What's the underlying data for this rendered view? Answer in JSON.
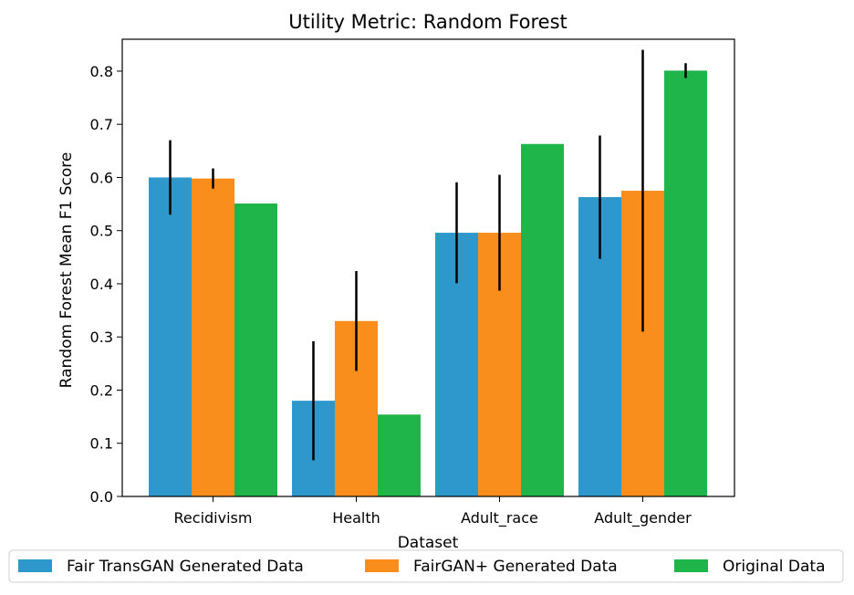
{
  "chart_data": {
    "type": "bar",
    "title": "Utility Metric: Random Forest",
    "xlabel": "Dataset",
    "ylabel": "Random Forest Mean F1 Score",
    "categories": [
      "Recidivism",
      "Health",
      "Adult_race",
      "Adult_gender"
    ],
    "ylim": [
      0,
      0.86
    ],
    "yticks": [
      "0.0",
      "0.1",
      "0.2",
      "0.3",
      "0.4",
      "0.5",
      "0.6",
      "0.7",
      "0.8"
    ],
    "grid": false,
    "legend_position": "bottom",
    "series": [
      {
        "name": "Fair TransGAN Generated Data",
        "color": "#2e97cc",
        "values": [
          0.6,
          0.18,
          0.496,
          0.563
        ],
        "error": [
          0.07,
          0.112,
          0.095,
          0.116
        ]
      },
      {
        "name": "FairGAN+ Generated Data",
        "color": "#fa8e1c",
        "values": [
          0.598,
          0.33,
          0.496,
          0.575
        ],
        "error": [
          0.019,
          0.094,
          0.109,
          0.265
        ]
      },
      {
        "name": "Original Data",
        "color": "#20b54b",
        "values": [
          0.551,
          0.154,
          0.663,
          0.801
        ],
        "error": [
          0,
          0,
          0,
          0.014
        ]
      }
    ]
  }
}
